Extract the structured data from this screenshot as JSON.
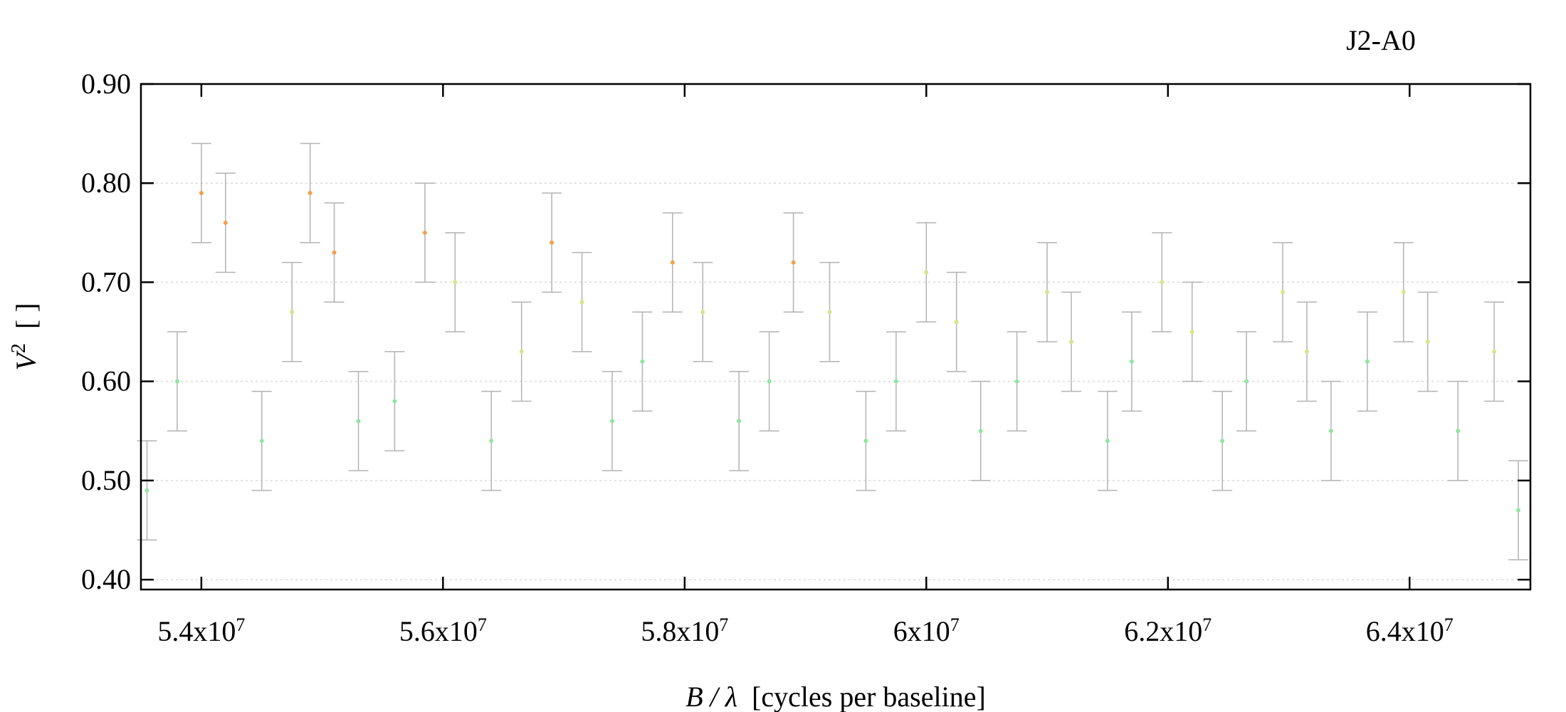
{
  "chart_data": {
    "type": "scatter",
    "title": "J2-A0",
    "xlabel": {
      "var": "B / λ",
      "unit": "[cycles per baseline]"
    },
    "ylabel": {
      "var": "V",
      "sup": "2",
      "unit": "[ ]"
    },
    "xlim": [
      53500000,
      65000000
    ],
    "ylim": [
      0.39,
      0.9
    ],
    "grid": {
      "y": true,
      "x": false
    },
    "x_ticks": [
      {
        "mant": "5.4x10",
        "exp": "7",
        "value": 54000000
      },
      {
        "mant": "5.6x10",
        "exp": "7",
        "value": 56000000
      },
      {
        "mant": "5.8x10",
        "exp": "7",
        "value": 58000000
      },
      {
        "mant": "6x10",
        "exp": "7",
        "value": 60000000
      },
      {
        "mant": "6.2x10",
        "exp": "7",
        "value": 62000000
      },
      {
        "mant": "6.4x10",
        "exp": "7",
        "value": 64000000
      }
    ],
    "y_ticks": [
      {
        "label": "0.40",
        "value": 0.4
      },
      {
        "label": "0.50",
        "value": 0.5
      },
      {
        "label": "0.60",
        "value": 0.6
      },
      {
        "label": "0.70",
        "value": 0.7
      },
      {
        "label": "0.80",
        "value": 0.8
      },
      {
        "label": "0.90",
        "value": 0.9
      }
    ],
    "series": [
      {
        "x": [
          53550000,
          53800000,
          54000000,
          54200000,
          54500000,
          54750000,
          54900000,
          55100000,
          55300000,
          55600000,
          55850000,
          56100000,
          56400000,
          56650000,
          56900000,
          57150000,
          57400000,
          57650000,
          57900000,
          58150000,
          58450000,
          58700000,
          58900000,
          59200000,
          59500000,
          59750000,
          60000000,
          60250000,
          60450000,
          60750000,
          61000000,
          61200000,
          61500000,
          61700000,
          61950000,
          62200000,
          62450000,
          62650000,
          62950000,
          63150000,
          63350000,
          63650000,
          63950000,
          64150000,
          64400000,
          64700000,
          64900000
        ],
        "y": [
          0.49,
          0.6,
          0.79,
          0.76,
          0.54,
          0.67,
          0.79,
          0.73,
          0.56,
          0.58,
          0.75,
          0.7,
          0.54,
          0.63,
          0.74,
          0.68,
          0.56,
          0.62,
          0.72,
          0.67,
          0.56,
          0.6,
          0.72,
          0.67,
          0.54,
          0.6,
          0.71,
          0.66,
          0.55,
          0.6,
          0.69,
          0.64,
          0.54,
          0.62,
          0.7,
          0.65,
          0.54,
          0.6,
          0.69,
          0.63,
          0.55,
          0.62,
          0.69,
          0.64,
          0.55,
          0.63,
          0.47
        ],
        "yerr": 0.05
      }
    ],
    "colors": {
      "errorbar": "#b3b3b3",
      "high": "#f5a04a",
      "mid": "#d8e48a",
      "low": "#8fe7a0",
      "grid": "#d9d9d9",
      "axis": "#000000"
    }
  }
}
